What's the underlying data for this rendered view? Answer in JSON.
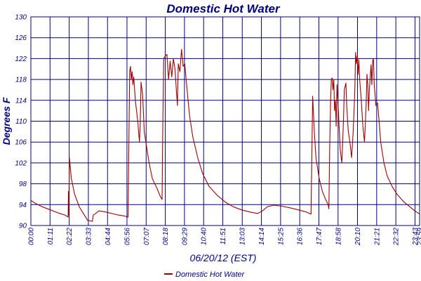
{
  "chart_data": {
    "type": "line",
    "title": "Domestic Hot Water",
    "xlabel": "06/20/12 (EST)",
    "ylabel": "Degrees F",
    "ylim": [
      90,
      130
    ],
    "xlim": [
      0,
      24
    ],
    "grid": true,
    "legend_position": "bottom-center",
    "y_ticks": [
      {
        "v": 90,
        "label": "90"
      },
      {
        "v": 94,
        "label": "94"
      },
      {
        "v": 98,
        "label": "98"
      },
      {
        "v": 102,
        "label": "102"
      },
      {
        "v": 106,
        "label": "106"
      },
      {
        "v": 110,
        "label": "110"
      },
      {
        "v": 114,
        "label": "114"
      },
      {
        "v": 118,
        "label": "118"
      },
      {
        "v": 122,
        "label": "122"
      },
      {
        "v": 126,
        "label": "126"
      },
      {
        "v": 130,
        "label": "130"
      }
    ],
    "x_ticks": [
      {
        "v": 0.0,
        "label": "00:00"
      },
      {
        "v": 1.183,
        "label": "01:11"
      },
      {
        "v": 2.367,
        "label": "02:22"
      },
      {
        "v": 3.55,
        "label": "03:33"
      },
      {
        "v": 4.733,
        "label": "04:44"
      },
      {
        "v": 5.933,
        "label": "05:56"
      },
      {
        "v": 7.117,
        "label": "07:07"
      },
      {
        "v": 8.3,
        "label": "08:18"
      },
      {
        "v": 9.483,
        "label": "09:29"
      },
      {
        "v": 10.667,
        "label": "10:40"
      },
      {
        "v": 11.85,
        "label": "11:51"
      },
      {
        "v": 13.05,
        "label": "13:03"
      },
      {
        "v": 14.233,
        "label": "14:14"
      },
      {
        "v": 15.417,
        "label": "15:25"
      },
      {
        "v": 16.6,
        "label": "16:36"
      },
      {
        "v": 17.783,
        "label": "17:47"
      },
      {
        "v": 18.967,
        "label": "18:58"
      },
      {
        "v": 20.167,
        "label": "20:10"
      },
      {
        "v": 21.35,
        "label": "21:21"
      },
      {
        "v": 22.533,
        "label": "22:32"
      },
      {
        "v": 23.717,
        "label": "23:43"
      },
      {
        "v": 24.0,
        "label": "23:59"
      }
    ],
    "series": [
      {
        "name": "Domestic Hot Water",
        "color": "#a00000",
        "points": [
          [
            0,
            94.8
          ],
          [
            0.3,
            94.2
          ],
          [
            0.7,
            93.6
          ],
          [
            1.2,
            93.0
          ],
          [
            1.7,
            92.4
          ],
          [
            2.1,
            92.0
          ],
          [
            2.3,
            91.6
          ],
          [
            2.32,
            96.5
          ],
          [
            2.34,
            92.0
          ],
          [
            2.38,
            103.0
          ],
          [
            2.5,
            99.0
          ],
          [
            2.7,
            96.0
          ],
          [
            3.0,
            93.5
          ],
          [
            3.3,
            92.0
          ],
          [
            3.5,
            91.0
          ],
          [
            3.8,
            90.8
          ],
          [
            3.85,
            92.0
          ],
          [
            4.0,
            92.3
          ],
          [
            4.2,
            92.8
          ],
          [
            4.6,
            92.6
          ],
          [
            5.0,
            92.3
          ],
          [
            5.4,
            92.0
          ],
          [
            5.8,
            91.8
          ],
          [
            6.0,
            91.6
          ],
          [
            6.05,
            106.0
          ],
          [
            6.1,
            119.5
          ],
          [
            6.15,
            120.5
          ],
          [
            6.2,
            118.0
          ],
          [
            6.25,
            119.5
          ],
          [
            6.3,
            117.0
          ],
          [
            6.35,
            118.5
          ],
          [
            6.45,
            114.0
          ],
          [
            6.6,
            110.0
          ],
          [
            6.7,
            106.0
          ],
          [
            6.75,
            109.0
          ],
          [
            6.8,
            117.5
          ],
          [
            6.9,
            115.0
          ],
          [
            7.0,
            108.0
          ],
          [
            7.1,
            106.0
          ],
          [
            7.3,
            102.0
          ],
          [
            7.5,
            99.0
          ],
          [
            7.8,
            97.0
          ],
          [
            8.0,
            95.5
          ],
          [
            8.1,
            95.0
          ],
          [
            8.15,
            110.0
          ],
          [
            8.2,
            122.0
          ],
          [
            8.3,
            122.5
          ],
          [
            8.4,
            122.8
          ],
          [
            8.5,
            118.0
          ],
          [
            8.6,
            121.5
          ],
          [
            8.7,
            118.5
          ],
          [
            8.8,
            122.0
          ],
          [
            8.9,
            120.0
          ],
          [
            9.0,
            115.0
          ],
          [
            9.05,
            113.0
          ],
          [
            9.1,
            121.0
          ],
          [
            9.2,
            119.5
          ],
          [
            9.3,
            123.8
          ],
          [
            9.4,
            120.5
          ],
          [
            9.5,
            121.0
          ],
          [
            9.6,
            117.5
          ],
          [
            9.8,
            111.0
          ],
          [
            10.0,
            107.0
          ],
          [
            10.3,
            103.0
          ],
          [
            10.6,
            100.0
          ],
          [
            11.0,
            97.5
          ],
          [
            11.5,
            95.8
          ],
          [
            12.0,
            94.5
          ],
          [
            12.5,
            93.6
          ],
          [
            13.0,
            93.0
          ],
          [
            13.5,
            92.6
          ],
          [
            14.0,
            92.3
          ],
          [
            14.3,
            92.8
          ],
          [
            14.6,
            93.6
          ],
          [
            15.0,
            93.9
          ],
          [
            15.5,
            93.7
          ],
          [
            16.0,
            93.4
          ],
          [
            16.5,
            93.0
          ],
          [
            17.0,
            92.6
          ],
          [
            17.2,
            92.3
          ],
          [
            17.3,
            92.2
          ],
          [
            17.35,
            104.0
          ],
          [
            17.4,
            114.8
          ],
          [
            17.5,
            108.0
          ],
          [
            17.6,
            103.0
          ],
          [
            17.8,
            99.0
          ],
          [
            18.0,
            96.5
          ],
          [
            18.2,
            95.0
          ],
          [
            18.35,
            94.0
          ],
          [
            18.4,
            93.2
          ],
          [
            18.45,
            105.0
          ],
          [
            18.5,
            113.0
          ],
          [
            18.55,
            118.0
          ],
          [
            18.6,
            118.3
          ],
          [
            18.65,
            116.0
          ],
          [
            18.7,
            118.0
          ],
          [
            18.75,
            112.0
          ],
          [
            18.8,
            114.0
          ],
          [
            18.85,
            109.0
          ],
          [
            18.9,
            117.0
          ],
          [
            19.0,
            111.0
          ],
          [
            19.1,
            104.5
          ],
          [
            19.2,
            102.0
          ],
          [
            19.3,
            110.0
          ],
          [
            19.35,
            116.0
          ],
          [
            19.45,
            117.3
          ],
          [
            19.5,
            113.0
          ],
          [
            19.6,
            108.0
          ],
          [
            19.7,
            106.0
          ],
          [
            19.8,
            103.0
          ],
          [
            19.9,
            108.0
          ],
          [
            20.0,
            116.0
          ],
          [
            20.05,
            123.2
          ],
          [
            20.1,
            121.0
          ],
          [
            20.15,
            122.5
          ],
          [
            20.2,
            119.0
          ],
          [
            20.25,
            121.8
          ],
          [
            20.3,
            118.0
          ],
          [
            20.4,
            114.0
          ],
          [
            20.5,
            109.0
          ],
          [
            20.6,
            106.0
          ],
          [
            20.7,
            113.0
          ],
          [
            20.75,
            119.0
          ],
          [
            20.8,
            117.0
          ],
          [
            20.85,
            112.0
          ],
          [
            20.9,
            116.0
          ],
          [
            21.0,
            120.8
          ],
          [
            21.05,
            117.0
          ],
          [
            21.1,
            121.5
          ],
          [
            21.15,
            122.0
          ],
          [
            21.2,
            117.0
          ],
          [
            21.3,
            113.0
          ],
          [
            21.4,
            113.5
          ],
          [
            21.5,
            110.0
          ],
          [
            21.6,
            106.0
          ],
          [
            21.8,
            102.0
          ],
          [
            22.0,
            99.5
          ],
          [
            22.3,
            97.5
          ],
          [
            22.6,
            96.0
          ],
          [
            23.0,
            94.6
          ],
          [
            23.4,
            93.6
          ],
          [
            23.7,
            92.8
          ],
          [
            24.0,
            92.2
          ]
        ]
      }
    ]
  }
}
